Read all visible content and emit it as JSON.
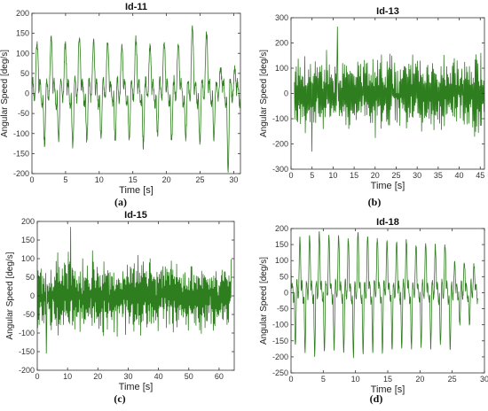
{
  "chart_data": [
    {
      "type": "line",
      "panel": "(a)",
      "title": "Id-11",
      "xlabel": "Time [s]",
      "ylabel": "Angular Speed [deg/s]",
      "xlim": [
        0,
        31
      ],
      "ylim": [
        -200,
        200
      ],
      "xticks": [
        0,
        5,
        10,
        15,
        20,
        25,
        30
      ],
      "yticks": [
        -200,
        -150,
        -100,
        -50,
        0,
        50,
        100,
        150,
        200
      ],
      "grid": false,
      "line_color": "#2e7d1e",
      "series": [
        {
          "pattern": "periodic",
          "period": 2.1,
          "phase": 0.5,
          "start": 0,
          "end": 31,
          "peak_values": [
            140,
            130,
            135,
            120,
            140,
            130,
            125,
            120,
            135,
            115,
            130,
            125,
            165,
            155,
            60
          ],
          "trough_values": [
            -130,
            -125,
            -115,
            -130,
            -120,
            -110,
            -115,
            -120,
            -130,
            -100,
            -120,
            -110,
            -125,
            -110,
            -190
          ],
          "noise": 12
        }
      ]
    },
    {
      "type": "line",
      "panel": "(b)",
      "title": "Id-13",
      "xlabel": "Time [s]",
      "ylabel": "Angular Speed [deg/s]",
      "xlim": [
        0,
        46
      ],
      "ylim": [
        -300,
        300
      ],
      "xticks": [
        0,
        5,
        10,
        15,
        20,
        25,
        30,
        35,
        40,
        45
      ],
      "yticks": [
        -300,
        -200,
        -100,
        0,
        100,
        200,
        300
      ],
      "grid": false,
      "line_color": "#2e7d1e",
      "series": [
        {
          "pattern": "oscillating",
          "period": 0.45,
          "start": 0.8,
          "end": 46,
          "amplitude_max": 170,
          "amplitude_min": 60,
          "max_value": 265,
          "max_at": 11,
          "min_value": -230,
          "min_at": 5,
          "noise": 25
        }
      ]
    },
    {
      "type": "line",
      "panel": "(c)",
      "title": "Id-15",
      "xlabel": "Time [s]",
      "ylabel": "Angular Speed [deg/s]",
      "xlim": [
        0,
        65
      ],
      "ylim": [
        -200,
        200
      ],
      "xticks": [
        0,
        10,
        20,
        30,
        40,
        50,
        60
      ],
      "yticks": [
        -200,
        -150,
        -100,
        -50,
        0,
        50,
        100,
        150,
        200
      ],
      "grid": false,
      "line_color": "#2e7d1e",
      "series": [
        {
          "pattern": "oscillating",
          "period": 0.5,
          "start": 0,
          "end": 64,
          "amplitude_max": 110,
          "amplitude_min": 40,
          "max_value": 185,
          "max_at": 11,
          "min_value": -155,
          "min_at": 3,
          "noise": 20
        }
      ]
    },
    {
      "type": "line",
      "panel": "(d)",
      "title": "Id-18",
      "xlabel": "Time [s]",
      "ylabel": "Angular Speed [deg/s]",
      "xlim": [
        0,
        30
      ],
      "ylim": [
        -250,
        200
      ],
      "xticks": [
        0,
        5,
        10,
        15,
        20,
        25,
        30
      ],
      "yticks": [
        -250,
        -200,
        -150,
        -100,
        -50,
        0,
        50,
        100,
        150,
        200
      ],
      "grid": false,
      "line_color": "#2e7d1e",
      "series": [
        {
          "pattern": "periodic",
          "period": 1.5,
          "phase": 1.2,
          "start": 0,
          "end": 29,
          "peak_values": [
            130,
            165,
            175,
            185,
            180,
            175,
            170,
            185,
            175,
            170,
            160,
            165,
            160,
            150,
            155,
            145,
            150,
            90
          ],
          "trough_values": [
            -170,
            -185,
            -200,
            -190,
            -175,
            -190,
            -200,
            -185,
            -180,
            -185,
            -175,
            -170,
            -170,
            -165,
            -170,
            -160,
            -175,
            -100
          ],
          "noise": 10
        }
      ]
    }
  ]
}
